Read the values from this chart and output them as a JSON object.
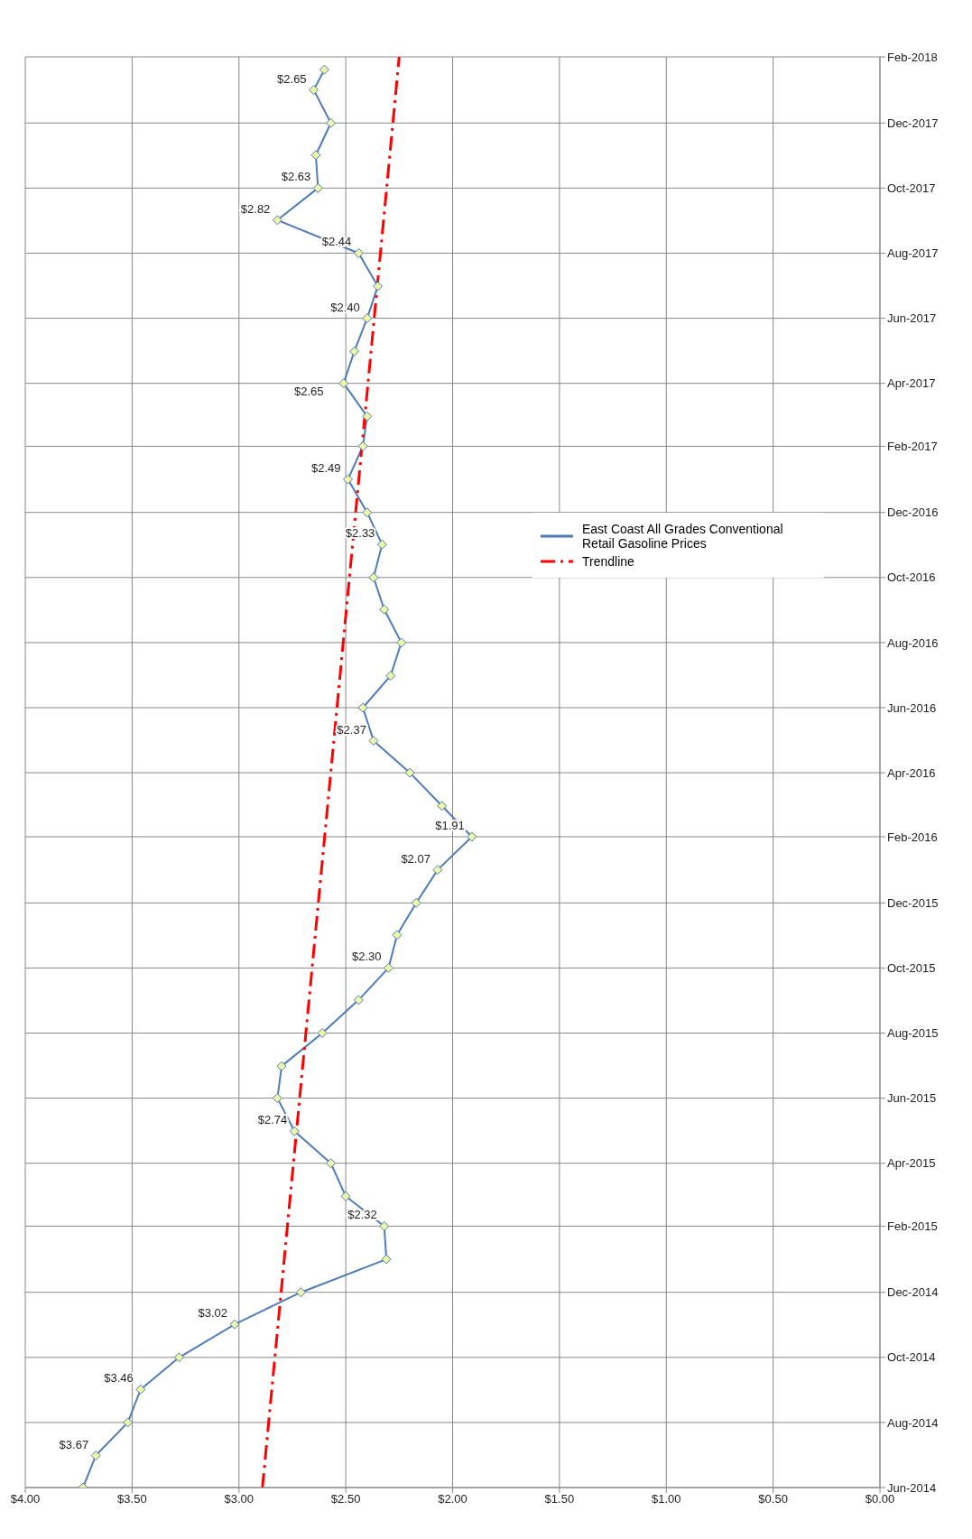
{
  "chart_data": {
    "type": "line",
    "orientation": "horizontal",
    "xlim": [
      4,
      0
    ],
    "xticks": [
      {
        "value": 4,
        "label": "$4.00"
      },
      {
        "value": 3.5,
        "label": "$3.50"
      },
      {
        "value": 3,
        "label": "$3.00"
      },
      {
        "value": 2.5,
        "label": "$2.50"
      },
      {
        "value": 2,
        "label": "$2.00"
      },
      {
        "value": 1.5,
        "label": "$1.50"
      },
      {
        "value": 1,
        "label": "$1.00"
      },
      {
        "value": 0.5,
        "label": "$0.50"
      },
      {
        "value": 0,
        "label": "$0.00"
      }
    ],
    "ylim": [
      "2014-06",
      "2018-02"
    ],
    "yticks": [
      {
        "value": "2014-06-01",
        "label": "Jun-2014"
      },
      {
        "value": "2014-08-01",
        "label": "Aug-2014"
      },
      {
        "value": "2014-10-01",
        "label": "Oct-2014"
      },
      {
        "value": "2014-12-01",
        "label": "Dec-2014"
      },
      {
        "value": "2015-02-01",
        "label": "Feb-2015"
      },
      {
        "value": "2015-04-01",
        "label": "Apr-2015"
      },
      {
        "value": "2015-06-01",
        "label": "Jun-2015"
      },
      {
        "value": "2015-08-01",
        "label": "Aug-2015"
      },
      {
        "value": "2015-10-01",
        "label": "Oct-2015"
      },
      {
        "value": "2015-12-01",
        "label": "Dec-2015"
      },
      {
        "value": "2016-02-01",
        "label": "Feb-2016"
      },
      {
        "value": "2016-04-01",
        "label": "Apr-2016"
      },
      {
        "value": "2016-06-01",
        "label": "Jun-2016"
      },
      {
        "value": "2016-08-01",
        "label": "Aug-2016"
      },
      {
        "value": "2016-10-01",
        "label": "Oct-2016"
      },
      {
        "value": "2016-12-01",
        "label": "Dec-2016"
      },
      {
        "value": "2017-02-01",
        "label": "Feb-2017"
      },
      {
        "value": "2017-04-01",
        "label": "Apr-2017"
      },
      {
        "value": "2017-06-01",
        "label": "Jun-2017"
      },
      {
        "value": "2017-08-01",
        "label": "Aug-2017"
      },
      {
        "value": "2017-10-01",
        "label": "Oct-2017"
      },
      {
        "value": "2017-12-01",
        "label": "Dec-2017"
      },
      {
        "value": "2018-02-01",
        "label": "Feb-2018"
      }
    ],
    "grid": true,
    "legend": "right",
    "series": [
      {
        "name": "East Coast All Grades Conventional Retail Gasoline Prices",
        "color": "#4f7cb5",
        "marker": "diamond",
        "line_style": "solid",
        "x": [
          "2014-06-01",
          "2014-07-01",
          "2014-08-01",
          "2014-09-01",
          "2014-10-01",
          "2014-11-01",
          "2014-12-01",
          "2015-01-01",
          "2015-02-01",
          "2015-03-01",
          "2015-04-01",
          "2015-05-01",
          "2015-06-01",
          "2015-07-01",
          "2015-08-01",
          "2015-09-01",
          "2015-10-01",
          "2015-11-01",
          "2015-12-01",
          "2016-01-01",
          "2016-02-01",
          "2016-03-01",
          "2016-04-01",
          "2016-05-01",
          "2016-06-01",
          "2016-07-01",
          "2016-08-01",
          "2016-09-01",
          "2016-10-01",
          "2016-11-01",
          "2016-12-01",
          "2017-01-01",
          "2017-02-01",
          "2017-03-01",
          "2017-04-01",
          "2017-05-01",
          "2017-06-01",
          "2017-07-01",
          "2017-08-01",
          "2017-09-01",
          "2017-10-01",
          "2017-11-01",
          "2017-12-01",
          "2018-01-01",
          "2018-01-20"
        ],
        "values": [
          3.73,
          3.67,
          3.52,
          3.46,
          3.28,
          3.02,
          2.71,
          2.31,
          2.32,
          2.5,
          2.57,
          2.74,
          2.82,
          2.8,
          2.61,
          2.44,
          2.3,
          2.26,
          2.17,
          2.07,
          1.91,
          2.05,
          2.2,
          2.37,
          2.42,
          2.29,
          2.24,
          2.32,
          2.37,
          2.33,
          2.4,
          2.49,
          2.42,
          2.4,
          2.51,
          2.46,
          2.4,
          2.35,
          2.44,
          2.82,
          2.63,
          2.64,
          2.57,
          2.65,
          2.6
        ],
        "value_labels": [
          null,
          "$3.67",
          null,
          "$3.46",
          null,
          "$3.02",
          null,
          null,
          "$2.32",
          null,
          null,
          "$2.74",
          null,
          null,
          null,
          null,
          "$2.30",
          null,
          null,
          "$2.07",
          "$1.91",
          null,
          null,
          "$2.37",
          null,
          null,
          null,
          null,
          null,
          "$2.33",
          null,
          "$2.49",
          null,
          null,
          null,
          null,
          "$2.40",
          null,
          "$2.44",
          "$2.82",
          "$2.63",
          null,
          null,
          "$2.65",
          null
        ]
      },
      {
        "name": "Trendline",
        "color": "#ff0000",
        "marker": "none",
        "line_style": "dashed",
        "x": [
          "2014-06-01",
          "2018-02-01"
        ],
        "values": [
          2.89,
          2.25
        ]
      }
    ],
    "annotations": [
      "$2.65"
    ]
  }
}
